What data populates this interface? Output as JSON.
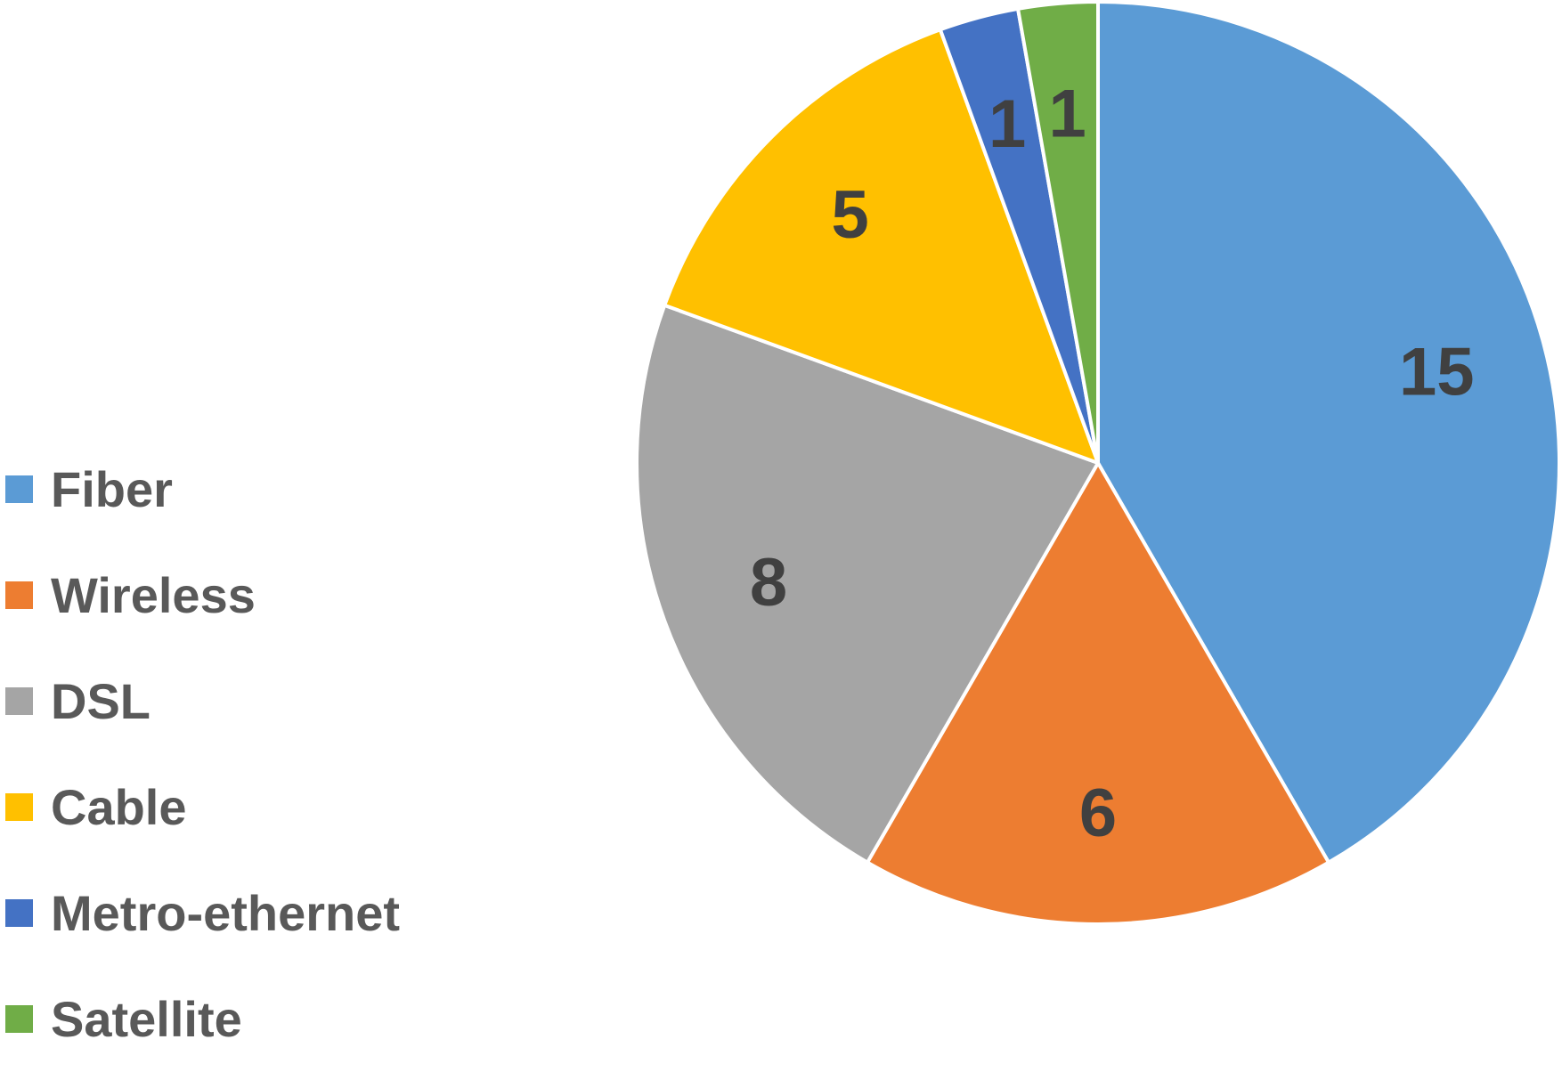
{
  "chart_data": {
    "type": "pie",
    "title": "",
    "start_angle_deg": 0,
    "direction": "clockwise",
    "categories": [
      "Fiber",
      "Wireless",
      "DSL",
      "Cable",
      "Metro-ethernet",
      "Satellite"
    ],
    "values": [
      15,
      6,
      8,
      5,
      1,
      1
    ],
    "colors": [
      "#5B9BD5",
      "#ED7D31",
      "#A5A5A5",
      "#FFC000",
      "#4472C4",
      "#70AD47"
    ],
    "data_labels": [
      "15",
      "6",
      "8",
      "5",
      "1",
      "1"
    ],
    "legend_position": "left",
    "slice_border_color": "#FFFFFF"
  },
  "legend": {
    "items": [
      {
        "label": "Fiber",
        "color": "#5B9BD5"
      },
      {
        "label": "Wireless",
        "color": "#ED7D31"
      },
      {
        "label": "DSL",
        "color": "#A5A5A5"
      },
      {
        "label": "Cable",
        "color": "#FFC000"
      },
      {
        "label": "Metro-ethernet",
        "color": "#4472C4"
      },
      {
        "label": "Satellite",
        "color": "#70AD47"
      }
    ]
  }
}
